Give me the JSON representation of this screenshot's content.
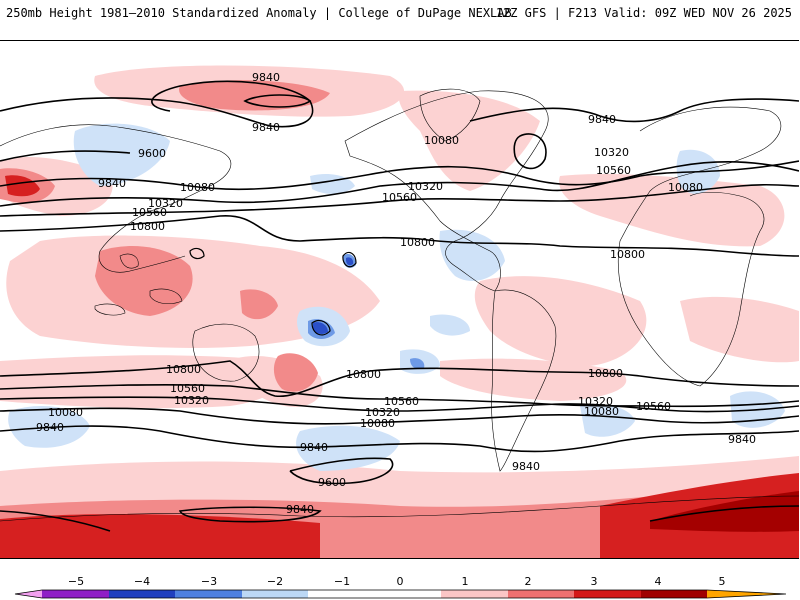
{
  "header": {
    "title_left": "250mb Height 1981–2010 Standardized Anomaly | College of DuPage NEXLAB",
    "title_right": "12Z GFS | F213 Valid: 09Z WED NOV 26 2025"
  },
  "contour_labels": {
    "c9600": "9600",
    "c9840": "9840",
    "c10080": "10080",
    "c10320": "10320",
    "c10560": "10560",
    "c10800": "10800"
  },
  "colorbar": {
    "ticks": [
      "−5",
      "−4",
      "−3",
      "−2",
      "−1",
      "0",
      "1",
      "2",
      "3",
      "4",
      "5"
    ],
    "colors": [
      "#f2a0f0",
      "#8f1fc6",
      "#1f3fbf",
      "#4e80e0",
      "#bcd8f5",
      "#ffffff",
      "#ffffff",
      "#fbc6c6",
      "#ee7070",
      "#d41818",
      "#a00000",
      "#ffa500"
    ]
  },
  "colors": {
    "pos1": "#fcd2d2",
    "pos2": "#f28a8a",
    "pos3": "#d62020",
    "pos4": "#a40000",
    "neg1": "#cfe2f8",
    "neg2": "#6e9ae6",
    "neg3": "#2a4fc8"
  }
}
